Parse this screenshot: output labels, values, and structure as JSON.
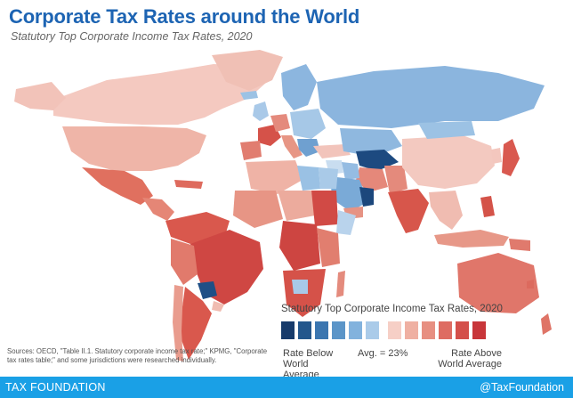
{
  "header": {
    "title": "Corporate Tax Rates around the World",
    "subtitle": "Statutory Top Corporate Income Tax Rates, 2020"
  },
  "legend": {
    "title": "Statutory Top Corporate Income Tax Rates, 2020",
    "below_label": "Rate Below World Average",
    "avg_label": "Avg. = 23%",
    "above_label": "Rate Above World Average",
    "colors_below": [
      "#173b6b",
      "#24578c",
      "#3b76b0",
      "#5b95c8",
      "#82b2dd",
      "#aacbe9"
    ],
    "colors_above": [
      "#f6cfc6",
      "#efb0a2",
      "#e78f81",
      "#de6c62",
      "#d44f4a",
      "#c8363a"
    ]
  },
  "map_colors": {
    "ocean": "#ffffff",
    "no_data": "#cccccc"
  },
  "sources": "Sources: OECD, \"Table II.1. Statutory corporate income tax rate;\" KPMG, \"Corporate tax rates table;\" and some jurisdictions were researched individually.",
  "footer": {
    "brand": "TAX FOUNDATION",
    "handle": "@TaxFoundation",
    "bar_color": "#1aa0e6"
  }
}
